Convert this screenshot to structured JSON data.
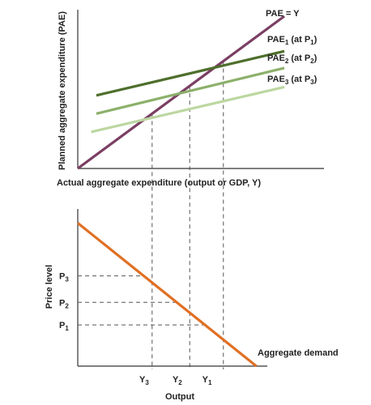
{
  "chart_data": [
    {
      "type": "line",
      "name": "keynesian-cross",
      "xlabel": "Actual aggregate expenditure (output or GDP, Y)",
      "ylabel": "Planned aggregate expenditure (PAE)",
      "xlim": [
        0,
        10
      ],
      "ylim": [
        0,
        10
      ],
      "series": [
        {
          "name": "PAE = Y",
          "base": "PAE = Y",
          "x": [
            0,
            10
          ],
          "y": [
            0,
            10
          ],
          "color": "#7b3e63"
        },
        {
          "name": "PAE1 (at P1)",
          "base": "PAE",
          "sub": "1",
          "at": "P",
          "atsub": "1",
          "x": [
            0.9,
            10
          ],
          "y": [
            4.8,
            7.7
          ],
          "color": "#4e6f2c"
        },
        {
          "name": "PAE2 (at P2)",
          "base": "PAE",
          "sub": "2",
          "at": "P",
          "atsub": "2",
          "x": [
            0.9,
            10
          ],
          "y": [
            3.6,
            6.6
          ],
          "color": "#8cb06a"
        },
        {
          "name": "PAE3 (at P3)",
          "base": "PAE",
          "sub": "3",
          "at": "P",
          "atsub": "3",
          "x": [
            0.65,
            10
          ],
          "y": [
            2.4,
            5.35
          ],
          "color": "#bcd7a0"
        }
      ],
      "equilibria": {
        "x": [
          3.6,
          5.42,
          7.05
        ],
        "y": [
          3.6,
          5.42,
          7.05
        ]
      }
    },
    {
      "type": "line",
      "name": "aggregate-demand",
      "xlabel": "Output",
      "ylabel": "Price level",
      "xlim": [
        0,
        10
      ],
      "ylim": [
        0,
        10
      ],
      "series": [
        {
          "name": "Aggregate demand",
          "x": [
            0,
            9.8
          ],
          "y": [
            9.2,
            0
          ],
          "color": "#e07024"
        }
      ],
      "xticks": [
        {
          "base": "Y",
          "sub": "3",
          "value": 3.6
        },
        {
          "base": "Y",
          "sub": "2",
          "value": 5.42
        },
        {
          "base": "Y",
          "sub": "1",
          "value": 7.05
        }
      ],
      "yticks": [
        {
          "base": "P",
          "sub": "3",
          "value": 5.8
        },
        {
          "base": "P",
          "sub": "2",
          "value": 4.1
        },
        {
          "base": "P",
          "sub": "1",
          "value": 2.65
        }
      ]
    }
  ]
}
